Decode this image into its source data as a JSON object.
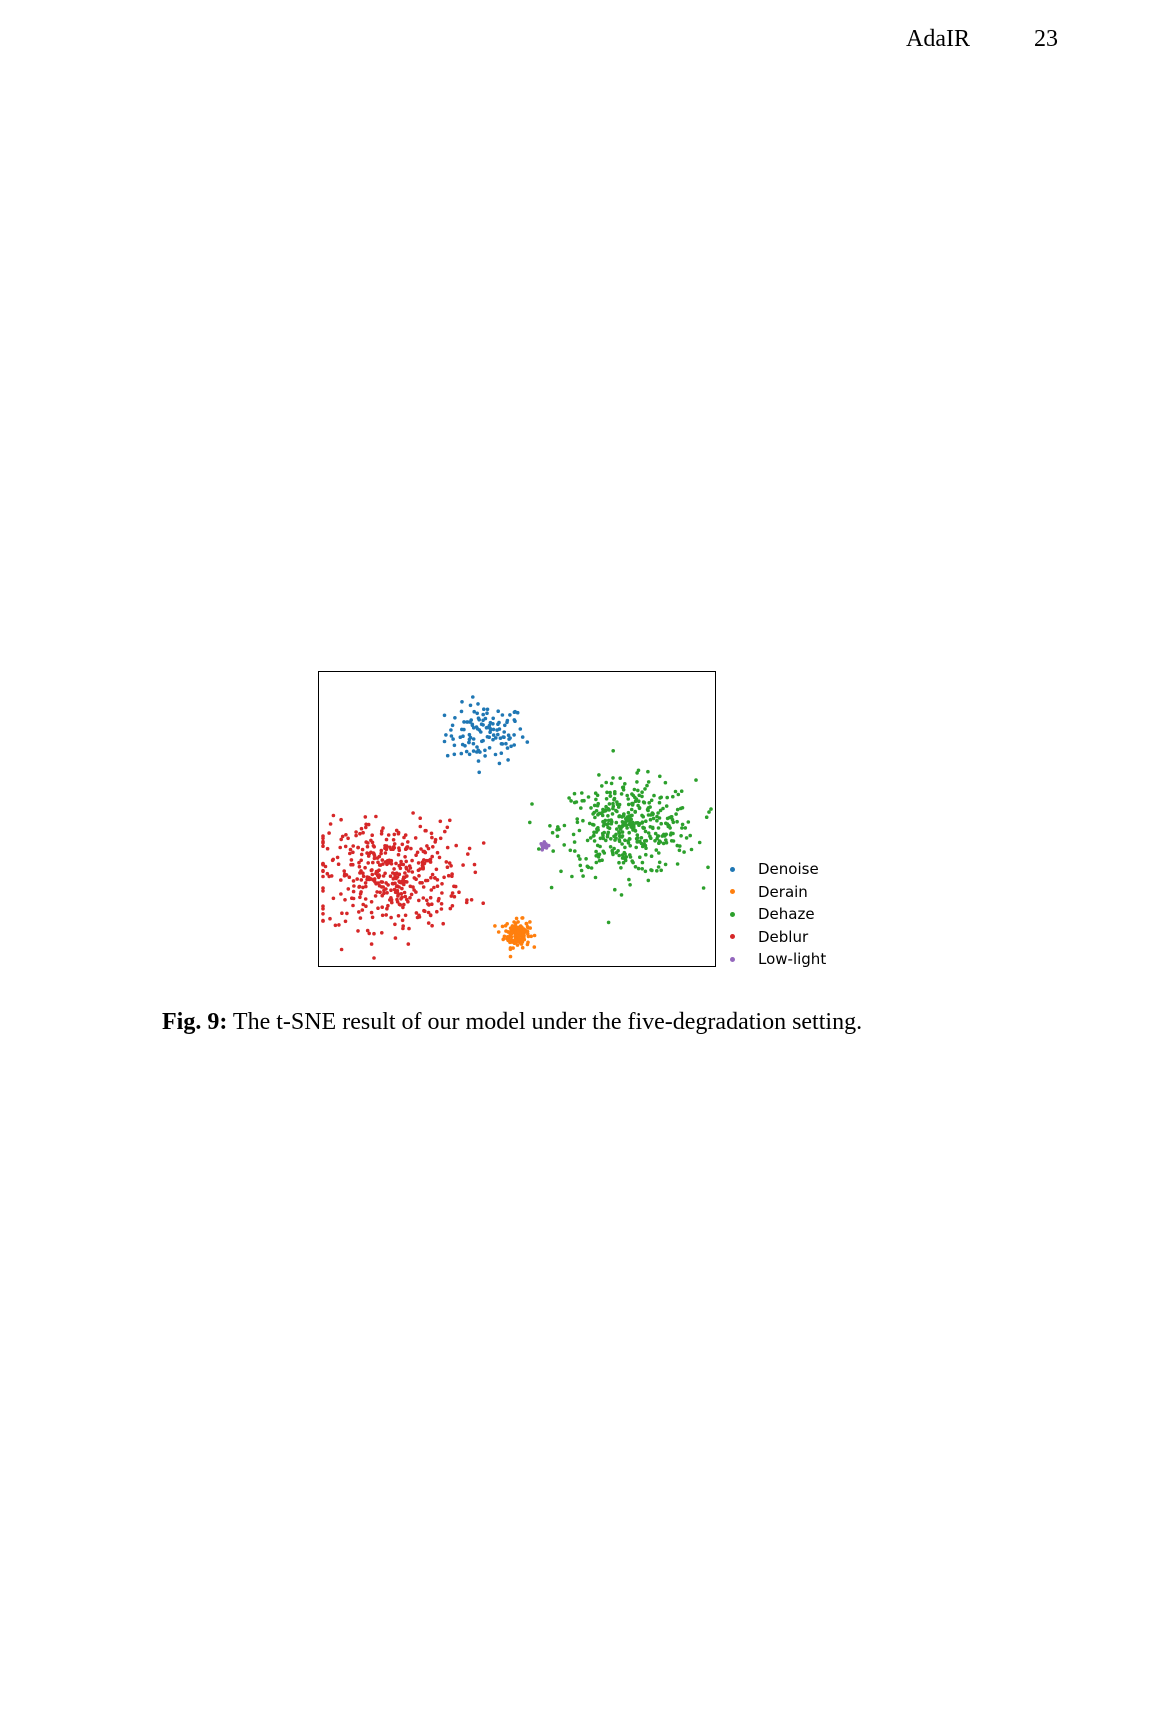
{
  "header": {
    "title": "AdaIR",
    "page_number": "23"
  },
  "figure": {
    "label": "Fig. 9:",
    "caption": "The t-SNE result of our model under the five-degradation setting."
  },
  "chart_data": {
    "type": "scatter",
    "title": "",
    "xlabel": "",
    "ylabel": "",
    "axes_ticks": "none",
    "grid": false,
    "legend_position": "right, outside plot, bottom-aligned",
    "xlim": [
      0,
      100
    ],
    "ylim": [
      0,
      100
    ],
    "series": [
      {
        "name": "Denoise",
        "color": "#1f77b4",
        "points": 120,
        "cluster_center": [
          42,
          79
        ],
        "cluster_spread": [
          5.0,
          5.0
        ]
      },
      {
        "name": "Derain",
        "color": "#ff7f0e",
        "points": 150,
        "cluster_center": [
          50,
          11
        ],
        "cluster_spread": [
          1.6,
          2.3
        ]
      },
      {
        "name": "Dehaze",
        "color": "#2ca02c",
        "points": 420,
        "cluster_center": [
          78,
          47
        ],
        "cluster_spread": [
          8.5,
          8.0
        ]
      },
      {
        "name": "Deblur",
        "color": "#d62728",
        "points": 430,
        "cluster_center": [
          18,
          31
        ],
        "cluster_spread": [
          9.0,
          9.0
        ]
      },
      {
        "name": "Low-light",
        "color": "#9467bd",
        "points": 25,
        "cluster_center": [
          57,
          41
        ],
        "cluster_spread": [
          0.5,
          0.5
        ]
      }
    ]
  }
}
